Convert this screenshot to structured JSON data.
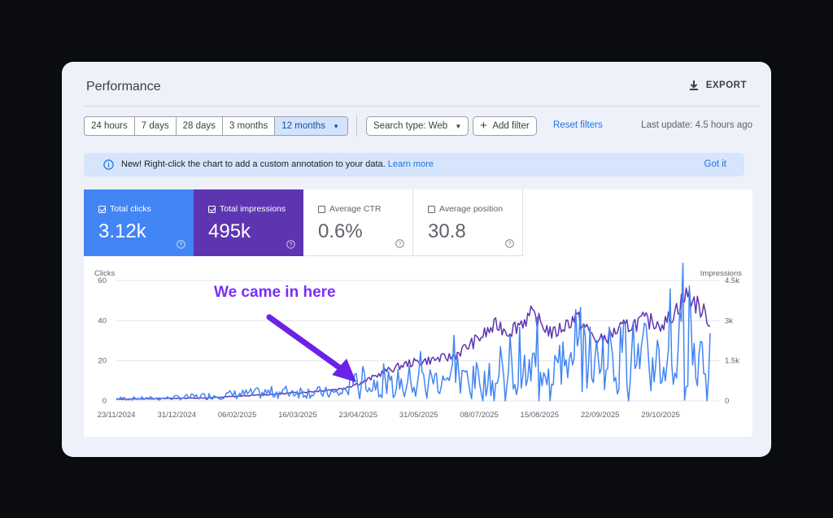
{
  "header": {
    "title": "Performance",
    "export_label": "EXPORT",
    "export_icon": "download-icon"
  },
  "filters": {
    "ranges": [
      {
        "label": "24 hours",
        "active": false
      },
      {
        "label": "7 days",
        "active": false
      },
      {
        "label": "28 days",
        "active": false
      },
      {
        "label": "3 months",
        "active": false
      },
      {
        "label": "12 months",
        "active": true
      }
    ],
    "search_type": "Search type: Web",
    "add_filter": "Add filter",
    "reset": "Reset filters",
    "last_update": "Last update: 4.5 hours ago"
  },
  "banner": {
    "message": "New! Right-click the chart to add a custom annotation to your data.",
    "link": "Learn more",
    "dismiss": "Got it"
  },
  "metrics": [
    {
      "label": "Total clicks",
      "value": "3.12k",
      "checked": true,
      "color": "#4285f4"
    },
    {
      "label": "Total impressions",
      "value": "495k",
      "checked": true,
      "color": "#5e35b1"
    },
    {
      "label": "Average CTR",
      "value": "0.6%",
      "checked": false
    },
    {
      "label": "Average position",
      "value": "30.8",
      "checked": false
    }
  ],
  "annotation": "We came in here",
  "chart_data": {
    "type": "line",
    "x_ticks": [
      "23/11/2024",
      "31/12/2024",
      "06/02/2025",
      "16/03/2025",
      "23/04/2025",
      "31/05/2025",
      "08/07/2025",
      "15/08/2025",
      "22/09/2025",
      "29/10/2025"
    ],
    "y_left_label": "Clicks",
    "y_left_ticks": [
      "0",
      "20",
      "40",
      "60"
    ],
    "y_left_range": [
      0,
      60
    ],
    "y_right_label": "Impressions",
    "y_right_ticks": [
      "0",
      "1.5k",
      "3k",
      "4.5k"
    ],
    "y_right_range": [
      0,
      4500
    ],
    "grid": true,
    "series": [
      {
        "name": "Clicks",
        "color": "#4285f4",
        "axis": "left",
        "x": [
          "2024-11-23",
          "2024-12-21",
          "2025-01-18",
          "2025-02-15",
          "2025-03-15",
          "2025-04-12",
          "2025-04-26",
          "2025-05-10",
          "2025-05-24",
          "2025-06-21",
          "2025-07-19",
          "2025-08-16",
          "2025-09-06",
          "2025-09-27",
          "2025-10-18",
          "2025-11-01",
          "2025-11-15",
          "2025-11-29"
        ],
        "values": [
          1,
          1,
          2,
          3,
          4,
          3,
          10,
          7,
          9,
          11,
          9,
          16,
          17,
          23,
          20,
          19,
          26,
          20
        ]
      },
      {
        "name": "Impressions",
        "color": "#5e35b1",
        "axis": "right",
        "x": [
          "2024-11-23",
          "2024-12-21",
          "2025-01-18",
          "2025-02-15",
          "2025-03-15",
          "2025-04-12",
          "2025-04-26",
          "2025-05-10",
          "2025-05-24",
          "2025-06-21",
          "2025-07-02",
          "2025-07-19",
          "2025-07-26",
          "2025-08-09",
          "2025-08-23",
          "2025-09-06",
          "2025-09-20",
          "2025-10-04",
          "2025-10-18",
          "2025-11-01",
          "2025-11-15",
          "2025-11-29"
        ],
        "values": [
          60,
          90,
          110,
          200,
          300,
          450,
          700,
          1100,
          1400,
          1650,
          2100,
          2850,
          2600,
          3200,
          2500,
          3150,
          2200,
          2700,
          3000,
          2900,
          4000,
          3000
        ]
      }
    ]
  }
}
